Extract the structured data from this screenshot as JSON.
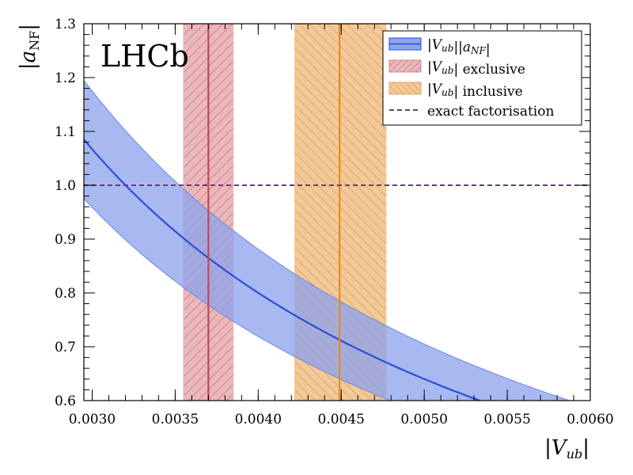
{
  "chart_data": {
    "type": "line",
    "title": "",
    "experiment_label": "LHCb",
    "xlabel": {
      "prefix": "|",
      "var": "V",
      "sub": "ub",
      "suffix": "|"
    },
    "ylabel": {
      "prefix": "|",
      "var": "a",
      "sub": "NF",
      "suffix": "|"
    },
    "xlim": [
      0.00295,
      0.006
    ],
    "ylim": [
      0.6,
      1.3
    ],
    "x_ticks": [
      0.003,
      0.0035,
      0.004,
      0.0045,
      0.005,
      0.0055,
      0.006
    ],
    "x_tick_labels": [
      "0.0030",
      "0.0035",
      "0.0040",
      "0.0045",
      "0.0050",
      "0.0055",
      "0.0060"
    ],
    "y_ticks": [
      0.6,
      0.7,
      0.8,
      0.9,
      1.0,
      1.1,
      1.2,
      1.3
    ],
    "y_tick_labels": [
      "0.6",
      "0.7",
      "0.8",
      "0.9",
      "1.0",
      "1.1",
      "1.2",
      "1.3"
    ],
    "x_minor_step": 0.0001,
    "y_minor_step": 0.02,
    "series": [
      {
        "name": "|V_ub||a_NF|",
        "kind": "band_with_central_line",
        "central_at_x0": 1.085,
        "upper_at_x0": 1.195,
        "lower_at_x0": 0.975,
        "x0": 0.00295,
        "model": "value * x0 / x",
        "color": "#2a4fd8",
        "band_color": "#8fa4ec"
      },
      {
        "name": "|V_ub| exclusive",
        "kind": "vertical_band",
        "center": 0.0037,
        "low": 0.00355,
        "high": 0.00385,
        "color": "#c8464b",
        "band_color": "#e9b8bc"
      },
      {
        "name": "|V_ub| inclusive",
        "kind": "vertical_band",
        "center": 0.00449,
        "low": 0.00422,
        "high": 0.00477,
        "color": "#e38a1e",
        "band_color": "#f2c998"
      },
      {
        "name": "exact factorisation",
        "kind": "horizontal_line",
        "y": 1.0,
        "color": "#6a3c7a",
        "style": "dashed"
      }
    ],
    "legend": {
      "placement": "top-right",
      "entries": [
        {
          "parts": [
            [
              "it",
              "|V"
            ],
            [
              "sm",
              "ub"
            ],
            [
              "it",
              "||a"
            ],
            [
              "sm",
              "NF"
            ],
            [
              "it",
              "|"
            ]
          ]
        },
        {
          "parts": [
            [
              "it",
              "|V"
            ],
            [
              "sm",
              "ub"
            ],
            [
              "it",
              "|"
            ],
            [
              "",
              " exclusive"
            ]
          ]
        },
        {
          "parts": [
            [
              "it",
              "|V"
            ],
            [
              "sm",
              "ub"
            ],
            [
              "it",
              "|"
            ],
            [
              "",
              " inclusive"
            ]
          ]
        },
        {
          "parts": [
            [
              "",
              "exact factorisation"
            ]
          ]
        }
      ]
    }
  }
}
